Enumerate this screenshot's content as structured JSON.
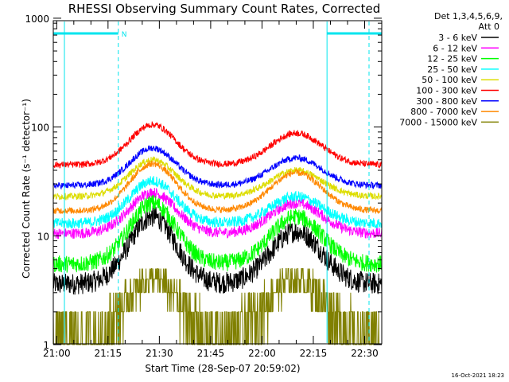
{
  "chart_data": {
    "type": "line",
    "title": "RHESSI Observing Summary Count Rates, Corrected",
    "xlabel": "Start Time (28-Sep-07 20:59:02)",
    "ylabel": "Corrected Count Rate (s⁻¹ detector⁻¹)",
    "yscale": "log",
    "ylim": [
      1,
      1000
    ],
    "xlim_minutes": [
      0,
      96
    ],
    "x_tick_labels": [
      "21:00",
      "21:15",
      "21:30",
      "21:45",
      "22:00",
      "22:15",
      "22:30"
    ],
    "x_tick_minutes": [
      1,
      16,
      31,
      46,
      61,
      76,
      91
    ],
    "y_tick_labels": [
      "1",
      "10",
      "100",
      "1000"
    ],
    "y_tick_values": [
      1,
      10,
      100,
      1000
    ],
    "legend_header": [
      "Det 1,3,4,5,6,9,",
      "Att 0"
    ],
    "legend_position": "right",
    "timestamp": "16-Oct-2021 18:23",
    "night_label": "N",
    "eclipse_bars": [
      {
        "start_min": 0.0,
        "end_min": 19.0,
        "label": "N"
      },
      {
        "start_min": 80.0,
        "end_min": 96.0,
        "label": ""
      }
    ],
    "series": [
      {
        "name": "3 - 6 keV",
        "color": "#000000",
        "base": 3.6,
        "peak1": 15.0,
        "peak2": 11.0,
        "noise": 0.1
      },
      {
        "name": "6 - 12 keV",
        "color": "#ff00ff",
        "base": 10.5,
        "peak1": 25.0,
        "peak2": 20.0,
        "noise": 0.05
      },
      {
        "name": "12 - 25 keV",
        "color": "#00ff00",
        "base": 5.5,
        "peak1": 20.0,
        "peak2": 15.0,
        "noise": 0.08
      },
      {
        "name": "25 - 50 keV",
        "color": "#00ffff",
        "base": 13.0,
        "peak1": 32.0,
        "peak2": 23.0,
        "noise": 0.05
      },
      {
        "name": "50 - 100 keV",
        "color": "#dddd00",
        "base": 23.0,
        "peak1": 50.0,
        "peak2": 40.0,
        "noise": 0.03
      },
      {
        "name": "100 - 300 keV",
        "color": "#ff0000",
        "base": 45.0,
        "peak1": 105.0,
        "peak2": 88.0,
        "noise": 0.03
      },
      {
        "name": "300 - 800 keV",
        "color": "#0000ff",
        "base": 29.0,
        "peak1": 64.0,
        "peak2": 52.0,
        "noise": 0.03
      },
      {
        "name": "800 - 7000 keV",
        "color": "#ff8800",
        "base": 17.0,
        "peak1": 46.0,
        "peak2": 38.0,
        "noise": 0.03
      },
      {
        "name": "7000 - 15000 keV",
        "color": "#808000",
        "base": 1.0,
        "peak1": 4.0,
        "peak2": 3.3,
        "noise": 0.0
      }
    ]
  }
}
